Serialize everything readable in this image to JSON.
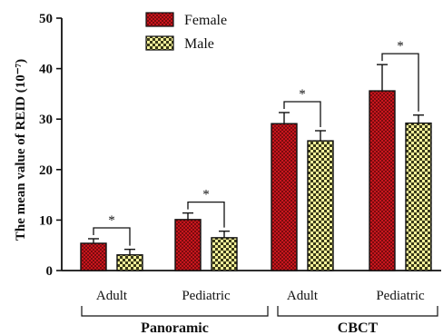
{
  "chart_data": {
    "type": "bar",
    "ylabel": "The mean value of REID (10⁻⁷)",
    "ylim": [
      0,
      50
    ],
    "yticks": [
      0,
      10,
      20,
      30,
      40,
      50
    ],
    "categories": [
      "Adult",
      "Pediatric",
      "Adult",
      "Pediatric"
    ],
    "groups": [
      {
        "label": "Panoramic",
        "categories": [
          0,
          1
        ]
      },
      {
        "label": "CBCT",
        "categories": [
          2,
          3
        ]
      }
    ],
    "series": [
      {
        "name": "Female",
        "values": [
          5.4,
          10.1,
          29.1,
          35.6
        ],
        "errors": [
          0.9,
          1.3,
          2.2,
          5.2
        ]
      },
      {
        "name": "Male",
        "values": [
          3.1,
          6.5,
          25.7,
          29.2
        ],
        "errors": [
          1.1,
          1.3,
          2.0,
          1.6
        ]
      }
    ],
    "significance": [
      "*",
      "*",
      "*",
      "*"
    ],
    "legend": "top-left",
    "grid": false
  },
  "colors": {
    "female_fill": "#c8161d",
    "female_pattern": "#7a0a0e",
    "male_fill": "#f6f29a",
    "male_pattern": "#3a3a1a",
    "axis": "#111111"
  }
}
